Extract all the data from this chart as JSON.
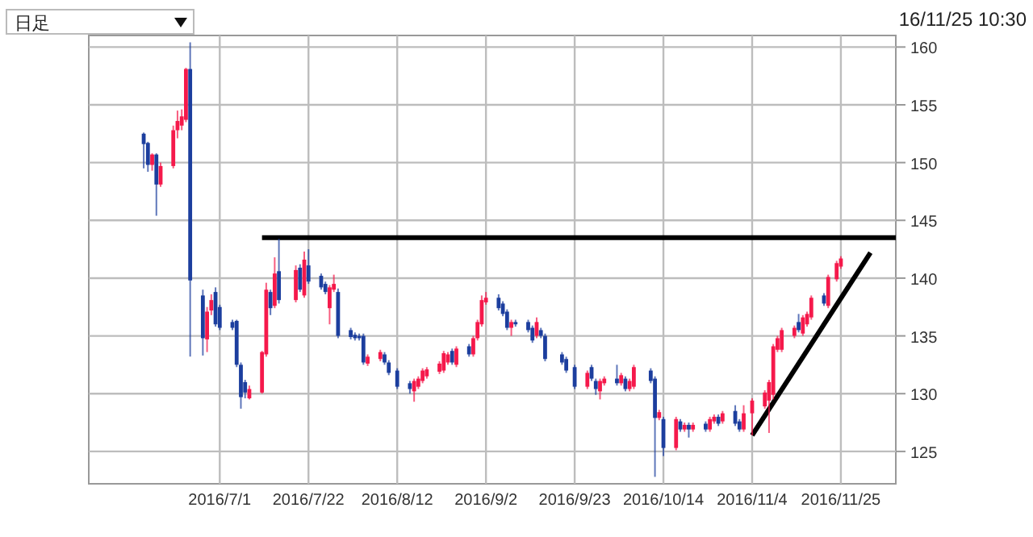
{
  "chart_data": {
    "type": "candlestick",
    "x": [
      "2016-06-13",
      "2016-06-14",
      "2016-06-15",
      "2016-06-16",
      "2016-06-17",
      "2016-06-20",
      "2016-06-21",
      "2016-06-22",
      "2016-06-23",
      "2016-06-24",
      "2016-06-27",
      "2016-06-28",
      "2016-06-29",
      "2016-06-30",
      "2016-07-01",
      "2016-07-04",
      "2016-07-05",
      "2016-07-06",
      "2016-07-07",
      "2016-07-08",
      "2016-07-11",
      "2016-07-12",
      "2016-07-13",
      "2016-07-14",
      "2016-07-15",
      "2016-07-19",
      "2016-07-20",
      "2016-07-21",
      "2016-07-22",
      "2016-07-25",
      "2016-07-26",
      "2016-07-27",
      "2016-07-28",
      "2016-07-29",
      "2016-08-01",
      "2016-08-02",
      "2016-08-03",
      "2016-08-04",
      "2016-08-05",
      "2016-08-08",
      "2016-08-09",
      "2016-08-10",
      "2016-08-12",
      "2016-08-15",
      "2016-08-16",
      "2016-08-17",
      "2016-08-18",
      "2016-08-19",
      "2016-08-22",
      "2016-08-23",
      "2016-08-24",
      "2016-08-25",
      "2016-08-26",
      "2016-08-29",
      "2016-08-30",
      "2016-08-31",
      "2016-09-01",
      "2016-09-02",
      "2016-09-05",
      "2016-09-06",
      "2016-09-07",
      "2016-09-08",
      "2016-09-09",
      "2016-09-12",
      "2016-09-13",
      "2016-09-14",
      "2016-09-15",
      "2016-09-16",
      "2016-09-20",
      "2016-09-21",
      "2016-09-23",
      "2016-09-26",
      "2016-09-27",
      "2016-09-28",
      "2016-09-29",
      "2016-09-30",
      "2016-10-03",
      "2016-10-04",
      "2016-10-05",
      "2016-10-06",
      "2016-10-07",
      "2016-10-11",
      "2016-10-12",
      "2016-10-13",
      "2016-10-14",
      "2016-10-17",
      "2016-10-18",
      "2016-10-19",
      "2016-10-20",
      "2016-10-21",
      "2016-10-24",
      "2016-10-25",
      "2016-10-26",
      "2016-10-27",
      "2016-10-28",
      "2016-10-31",
      "2016-11-01",
      "2016-11-02",
      "2016-11-04",
      "2016-11-07",
      "2016-11-08",
      "2016-11-09",
      "2016-11-10",
      "2016-11-11",
      "2016-11-14",
      "2016-11-15",
      "2016-11-16",
      "2016-11-17",
      "2016-11-18",
      "2016-11-21",
      "2016-11-22",
      "2016-11-24",
      "2016-11-25"
    ],
    "ohlc": [
      [
        152.5,
        152.6,
        149.5,
        151.6
      ],
      [
        151.7,
        151.8,
        149.2,
        149.8
      ],
      [
        149.8,
        150.8,
        149.3,
        150.7
      ],
      [
        150.7,
        150.8,
        145.4,
        148.1
      ],
      [
        148.1,
        150.0,
        147.9,
        149.7
      ],
      [
        149.7,
        153.2,
        149.5,
        152.8
      ],
      [
        152.8,
        154.5,
        152.1,
        153.6
      ],
      [
        153.2,
        154.6,
        152.8,
        154.0
      ],
      [
        153.7,
        158.2,
        153.5,
        158.1
      ],
      [
        158.1,
        160.4,
        133.2,
        139.8
      ],
      [
        138.5,
        139.0,
        133.3,
        134.8
      ],
      [
        134.7,
        137.5,
        133.6,
        137.1
      ],
      [
        137.2,
        138.6,
        136.8,
        138.1
      ],
      [
        138.8,
        139.2,
        135.8,
        136.0
      ],
      [
        137.5,
        137.7,
        135.5,
        135.7
      ],
      [
        136.2,
        136.4,
        135.5,
        135.7
      ],
      [
        136.3,
        136.4,
        132.3,
        132.5
      ],
      [
        132.5,
        132.7,
        128.7,
        129.7
      ],
      [
        131.0,
        131.2,
        129.6,
        130.1
      ],
      [
        129.6,
        130.7,
        129.5,
        130.4
      ],
      [
        130.1,
        133.7,
        130.0,
        133.6
      ],
      [
        133.4,
        139.6,
        133.2,
        139.0
      ],
      [
        138.8,
        139.0,
        136.8,
        137.4
      ],
      [
        137.6,
        141.8,
        137.4,
        140.4
      ],
      [
        140.6,
        143.4,
        137.8,
        138.1
      ],
      [
        138.1,
        141.1,
        137.9,
        140.7
      ],
      [
        140.9,
        141.2,
        138.8,
        139.0
      ],
      [
        138.5,
        142.3,
        138.3,
        141.6
      ],
      [
        141.1,
        142.5,
        139.5,
        139.7
      ],
      [
        140.2,
        140.4,
        139.0,
        139.2
      ],
      [
        139.5,
        139.7,
        138.6,
        138.8
      ],
      [
        137.4,
        139.4,
        136.0,
        139.2
      ],
      [
        139.0,
        140.3,
        138.8,
        139.5
      ],
      [
        138.8,
        139.1,
        134.8,
        135.0
      ],
      [
        135.5,
        135.7,
        134.7,
        134.9
      ],
      [
        135.1,
        135.3,
        134.6,
        134.8
      ],
      [
        135.0,
        135.2,
        134.6,
        134.8
      ],
      [
        135.0,
        135.2,
        132.5,
        132.7
      ],
      [
        132.6,
        133.4,
        132.4,
        133.2
      ],
      [
        133.0,
        133.8,
        132.8,
        133.6
      ],
      [
        133.4,
        133.6,
        132.5,
        132.7
      ],
      [
        132.7,
        132.9,
        131.6,
        131.8
      ],
      [
        132.0,
        132.2,
        130.4,
        130.6
      ],
      [
        130.9,
        131.1,
        130.0,
        130.4
      ],
      [
        130.2,
        131.3,
        129.3,
        131.1
      ],
      [
        130.6,
        131.5,
        130.4,
        131.3
      ],
      [
        131.1,
        132.2,
        130.9,
        132.0
      ],
      [
        131.5,
        132.3,
        131.3,
        132.1
      ],
      [
        131.9,
        132.8,
        131.7,
        132.6
      ],
      [
        132.0,
        133.7,
        131.8,
        133.5
      ],
      [
        132.7,
        133.6,
        132.5,
        133.4
      ],
      [
        133.7,
        133.9,
        132.5,
        132.7
      ],
      [
        132.5,
        134.1,
        132.3,
        133.9
      ],
      [
        134.1,
        134.3,
        133.2,
        133.4
      ],
      [
        133.4,
        135.0,
        133.2,
        134.8
      ],
      [
        134.8,
        136.4,
        134.6,
        136.2
      ],
      [
        136.0,
        138.5,
        135.8,
        138.1
      ],
      [
        137.9,
        138.8,
        137.7,
        138.3
      ],
      [
        138.3,
        138.6,
        137.2,
        137.4
      ],
      [
        137.8,
        138.0,
        136.7,
        136.9
      ],
      [
        137.1,
        137.3,
        135.5,
        135.7
      ],
      [
        135.7,
        136.4,
        135.0,
        136.2
      ],
      [
        136.2,
        136.4,
        135.8,
        136.0
      ],
      [
        136.2,
        136.4,
        135.3,
        135.5
      ],
      [
        135.7,
        135.9,
        134.4,
        134.6
      ],
      [
        135.0,
        136.6,
        134.8,
        136.2
      ],
      [
        135.5,
        135.7,
        134.8,
        135.0
      ],
      [
        135.0,
        135.2,
        132.8,
        133.0
      ],
      [
        133.4,
        133.6,
        132.5,
        132.7
      ],
      [
        133.0,
        133.2,
        131.8,
        132.0
      ],
      [
        132.3,
        132.5,
        130.4,
        130.6
      ],
      [
        130.6,
        132.0,
        130.4,
        131.8
      ],
      [
        132.3,
        132.5,
        131.1,
        131.3
      ],
      [
        131.1,
        131.3,
        129.9,
        130.4
      ],
      [
        130.2,
        131.3,
        129.5,
        131.1
      ],
      [
        130.9,
        131.5,
        130.7,
        131.3
      ],
      [
        131.3,
        132.5,
        130.7,
        130.9
      ],
      [
        130.9,
        131.8,
        130.7,
        131.6
      ],
      [
        131.3,
        131.5,
        130.2,
        130.4
      ],
      [
        130.4,
        131.3,
        130.2,
        131.1
      ],
      [
        130.6,
        132.5,
        130.4,
        132.3
      ],
      [
        132.0,
        132.2,
        130.9,
        131.1
      ],
      [
        131.3,
        131.5,
        122.8,
        127.9
      ],
      [
        127.9,
        128.6,
        127.7,
        128.4
      ],
      [
        127.8,
        128.0,
        124.6,
        125.3
      ],
      [
        125.3,
        128.0,
        125.1,
        127.8
      ],
      [
        127.6,
        127.8,
        126.7,
        126.9
      ],
      [
        126.9,
        127.5,
        126.7,
        127.3
      ],
      [
        127.3,
        127.5,
        126.2,
        126.9
      ],
      [
        126.9,
        127.5,
        126.7,
        127.3
      ],
      [
        127.4,
        127.6,
        126.7,
        126.9
      ],
      [
        126.9,
        128.0,
        126.7,
        127.8
      ],
      [
        127.6,
        128.2,
        127.4,
        128.0
      ],
      [
        128.0,
        128.2,
        127.2,
        127.4
      ],
      [
        127.6,
        128.5,
        127.4,
        128.3
      ],
      [
        128.5,
        129.0,
        127.2,
        127.4
      ],
      [
        127.6,
        127.8,
        126.7,
        126.9
      ],
      [
        126.9,
        129.0,
        126.7,
        128.3
      ],
      [
        128.3,
        129.6,
        126.4,
        129.4
      ],
      [
        128.9,
        130.3,
        128.7,
        130.1
      ],
      [
        129.4,
        131.2,
        126.6,
        131.0
      ],
      [
        129.9,
        134.3,
        129.5,
        134.1
      ],
      [
        133.8,
        135.0,
        133.6,
        134.8
      ],
      [
        133.8,
        135.7,
        133.6,
        135.5
      ],
      [
        135.0,
        135.9,
        134.8,
        135.7
      ],
      [
        136.2,
        136.9,
        135.3,
        135.5
      ],
      [
        135.2,
        136.8,
        135.0,
        136.6
      ],
      [
        136.0,
        137.1,
        135.8,
        136.9
      ],
      [
        136.6,
        138.5,
        136.4,
        138.3
      ],
      [
        138.5,
        138.7,
        137.6,
        137.8
      ],
      [
        137.6,
        140.3,
        137.4,
        140.1
      ],
      [
        139.9,
        141.5,
        139.7,
        141.3
      ],
      [
        141.0,
        141.9,
        140.8,
        141.7
      ]
    ],
    "colors": [
      "#1c3e9e",
      "#1c3e9e",
      "#f5194b",
      "#1c3e9e",
      "#f5194b",
      "#f5194b",
      "#f5194b",
      "#f5194b",
      "#f5194b",
      "#1c3e9e",
      "#1c3e9e",
      "#f5194b",
      "#f5194b",
      "#1c3e9e",
      "#1c3e9e",
      "#1c3e9e",
      "#1c3e9e",
      "#1c3e9e",
      "#1c3e9e",
      "#f5194b",
      "#f5194b",
      "#f5194b",
      "#1c3e9e",
      "#f5194b",
      "#1c3e9e",
      "#f5194b",
      "#1c3e9e",
      "#f5194b",
      "#1c3e9e",
      "#1c3e9e",
      "#1c3e9e",
      "#f5194b",
      "#f5194b",
      "#1c3e9e",
      "#1c3e9e",
      "#1c3e9e",
      "#1c3e9e",
      "#1c3e9e",
      "#f5194b",
      "#f5194b",
      "#1c3e9e",
      "#1c3e9e",
      "#1c3e9e",
      "#1c3e9e",
      "#f5194b",
      "#f5194b",
      "#f5194b",
      "#f5194b",
      "#f5194b",
      "#f5194b",
      "#f5194b",
      "#1c3e9e",
      "#f5194b",
      "#1c3e9e",
      "#f5194b",
      "#f5194b",
      "#f5194b",
      "#f5194b",
      "#1c3e9e",
      "#1c3e9e",
      "#1c3e9e",
      "#f5194b",
      "#1c3e9e",
      "#1c3e9e",
      "#1c3e9e",
      "#f5194b",
      "#1c3e9e",
      "#1c3e9e",
      "#1c3e9e",
      "#1c3e9e",
      "#1c3e9e",
      "#f5194b",
      "#1c3e9e",
      "#1c3e9e",
      "#f5194b",
      "#f5194b",
      "#1c3e9e",
      "#f5194b",
      "#1c3e9e",
      "#f5194b",
      "#f5194b",
      "#1c3e9e",
      "#1c3e9e",
      "#f5194b",
      "#1c3e9e",
      "#f5194b",
      "#1c3e9e",
      "#f5194b",
      "#1c3e9e",
      "#f5194b",
      "#1c3e9e",
      "#f5194b",
      "#f5194b",
      "#1c3e9e",
      "#f5194b",
      "#1c3e9e",
      "#1c3e9e",
      "#f5194b",
      "#f5194b",
      "#f5194b",
      "#f5194b",
      "#f5194b",
      "#f5194b",
      "#f5194b",
      "#f5194b",
      "#1c3e9e",
      "#f5194b",
      "#f5194b",
      "#f5194b",
      "#1c3e9e",
      "#f5194b",
      "#f5194b",
      "#f5194b"
    ],
    "series": [
      {
        "type": "line",
        "x": [
          "2016-07-11",
          "2016-12-08"
        ],
        "values": [
          143.5,
          143.5
        ],
        "color": "#000000"
      },
      {
        "type": "line",
        "x": [
          "2016-11-04",
          "2016-12-02"
        ],
        "values": [
          126.4,
          142.2
        ],
        "color": "#000000"
      }
    ],
    "xlim": [
      "2016-05-31",
      "2016-12-08"
    ],
    "xticks": [
      {
        "value": "2016-07-01",
        "label": "2016/7/1"
      },
      {
        "value": "2016-07-22",
        "label": "2016/7/22"
      },
      {
        "value": "2016-08-12",
        "label": "2016/8/12"
      },
      {
        "value": "2016-09-02",
        "label": "2016/9/2"
      },
      {
        "value": "2016-09-23",
        "label": "2016/9/23"
      },
      {
        "value": "2016-10-14",
        "label": "2016/10/14"
      },
      {
        "value": "2016-11-04",
        "label": "2016/11/4"
      },
      {
        "value": "2016-11-25",
        "label": "2016/11/25"
      }
    ],
    "ylim": [
      122.2,
      161
    ],
    "yticks": [
      125,
      130,
      135,
      140,
      145,
      150,
      155,
      160
    ],
    "grid": true,
    "annotations": [
      "日足",
      "16/11/25 10:30"
    ]
  }
}
